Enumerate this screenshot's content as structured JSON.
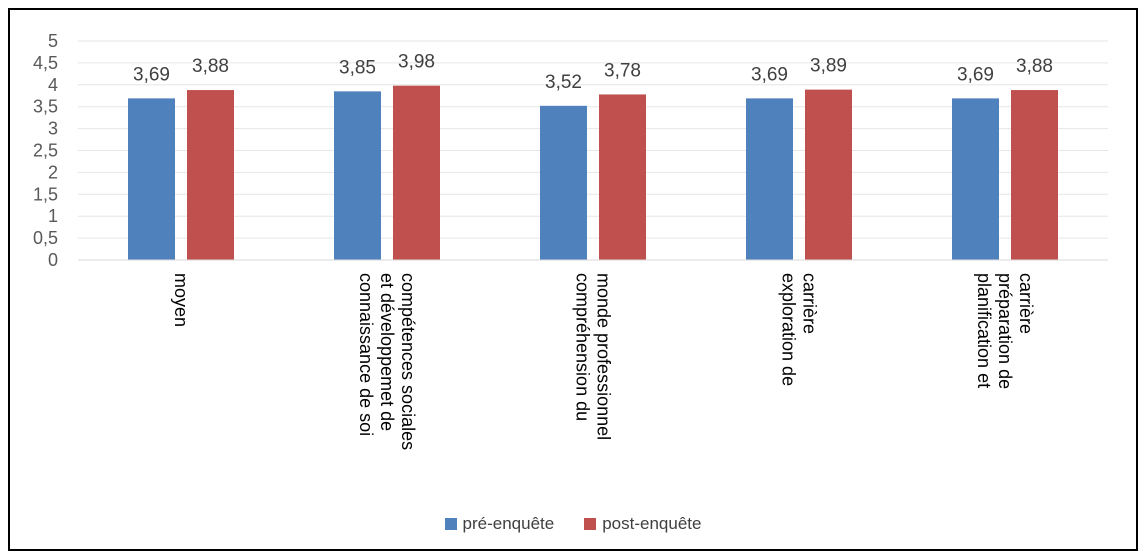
{
  "chart_data": {
    "type": "bar",
    "categories": [
      [
        "moyen"
      ],
      [
        "connaissance de soi",
        "et développemet de",
        "compétences sociales"
      ],
      [
        "compréhension du",
        "monde professionnel"
      ],
      [
        "exploration de",
        "carrière"
      ],
      [
        "planification et",
        "préparation de",
        "carrière"
      ]
    ],
    "series": [
      {
        "name": "pré-enquête",
        "color": "#4f81bd",
        "values": [
          3.69,
          3.85,
          3.52,
          3.69,
          3.69
        ],
        "labels": [
          "3,69",
          "3,85",
          "3,52",
          "3,69",
          "3,69"
        ]
      },
      {
        "name": "post-enquête",
        "color": "#c0504d",
        "values": [
          3.88,
          3.98,
          3.78,
          3.89,
          3.88
        ],
        "labels": [
          "3,88",
          "3,98",
          "3,78",
          "3,89",
          "3,88"
        ]
      }
    ],
    "ylim": [
      0,
      5
    ],
    "yticks": [
      0,
      0.5,
      1,
      1.5,
      2,
      2.5,
      3,
      3.5,
      4,
      4.5,
      5
    ],
    "ytick_labels": [
      "0",
      "0,5",
      "1",
      "1,5",
      "2",
      "2,5",
      "3",
      "3,5",
      "4",
      "4,5",
      "5"
    ],
    "grid": true,
    "legend": "bottom"
  }
}
